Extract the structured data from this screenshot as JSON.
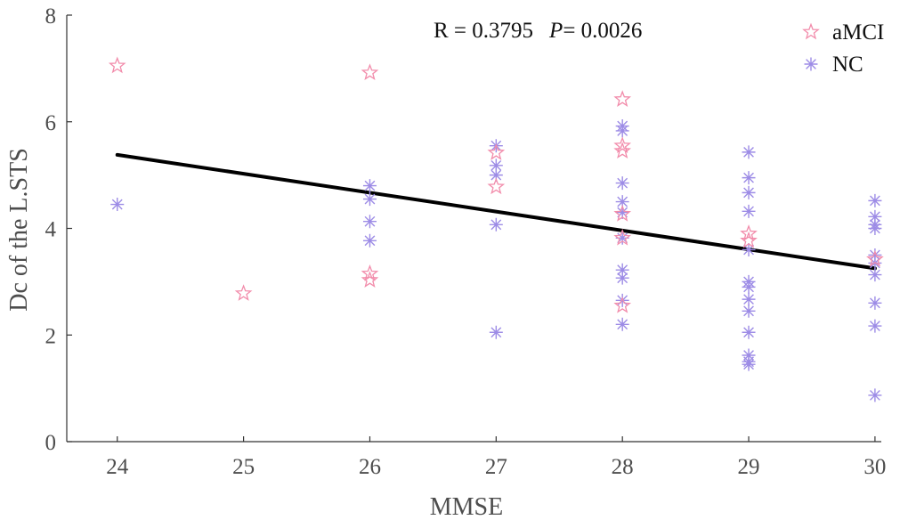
{
  "chart_data": {
    "type": "scatter",
    "title": "",
    "xlabel": "MMSE",
    "ylabel": "Dc of the L.STS",
    "xlim": [
      23.6,
      30.05
    ],
    "ylim": [
      0,
      8
    ],
    "xticks": [
      "24",
      "25",
      "26",
      "27",
      "28",
      "29",
      "30"
    ],
    "yticks": [
      "0",
      "2",
      "4",
      "6",
      "8"
    ],
    "grid": false,
    "legend_position": "top-right",
    "annotation": {
      "r_text": "R = 0.3795",
      "p_label": "P",
      "p_value": "= 0.0026"
    },
    "series": [
      {
        "name": "aMCI",
        "marker": "star",
        "color": "#f28cab",
        "points": [
          [
            24,
            7.05
          ],
          [
            25,
            2.78
          ],
          [
            26,
            6.92
          ],
          [
            26,
            3.15
          ],
          [
            26,
            3.03
          ],
          [
            27,
            5.42
          ],
          [
            27,
            4.78
          ],
          [
            28,
            6.42
          ],
          [
            28,
            5.55
          ],
          [
            28,
            5.45
          ],
          [
            28,
            4.27
          ],
          [
            28,
            3.82
          ],
          [
            28,
            2.55
          ],
          [
            29,
            3.9
          ],
          [
            29,
            3.77
          ],
          [
            30,
            3.42
          ]
        ]
      },
      {
        "name": "NC",
        "marker": "asterisk",
        "color": "#9d8ce6",
        "points": [
          [
            24,
            4.45
          ],
          [
            26,
            4.8
          ],
          [
            26,
            4.55
          ],
          [
            26,
            4.13
          ],
          [
            26,
            3.77
          ],
          [
            27,
            5.55
          ],
          [
            27,
            5.18
          ],
          [
            27,
            5.0
          ],
          [
            27,
            4.07
          ],
          [
            27,
            2.05
          ],
          [
            28,
            5.92
          ],
          [
            28,
            5.83
          ],
          [
            28,
            4.85
          ],
          [
            28,
            4.5
          ],
          [
            28,
            4.3
          ],
          [
            28,
            3.82
          ],
          [
            28,
            3.22
          ],
          [
            28,
            3.07
          ],
          [
            28,
            2.65
          ],
          [
            28,
            2.2
          ],
          [
            29,
            5.43
          ],
          [
            29,
            4.95
          ],
          [
            29,
            4.67
          ],
          [
            29,
            4.32
          ],
          [
            29,
            3.6
          ],
          [
            29,
            3.0
          ],
          [
            29,
            2.9
          ],
          [
            29,
            2.67
          ],
          [
            29,
            2.45
          ],
          [
            29,
            2.05
          ],
          [
            29,
            1.62
          ],
          [
            29,
            1.5
          ],
          [
            29,
            1.45
          ],
          [
            30,
            4.52
          ],
          [
            30,
            4.22
          ],
          [
            30,
            4.07
          ],
          [
            30,
            4.0
          ],
          [
            30,
            3.5
          ],
          [
            30,
            3.35
          ],
          [
            30,
            3.13
          ],
          [
            30,
            2.6
          ],
          [
            30,
            2.17
          ],
          [
            30,
            0.87
          ]
        ]
      }
    ],
    "fit_line": {
      "color": "#000000",
      "points": [
        [
          24,
          5.38
        ],
        [
          30,
          3.25
        ]
      ]
    }
  }
}
